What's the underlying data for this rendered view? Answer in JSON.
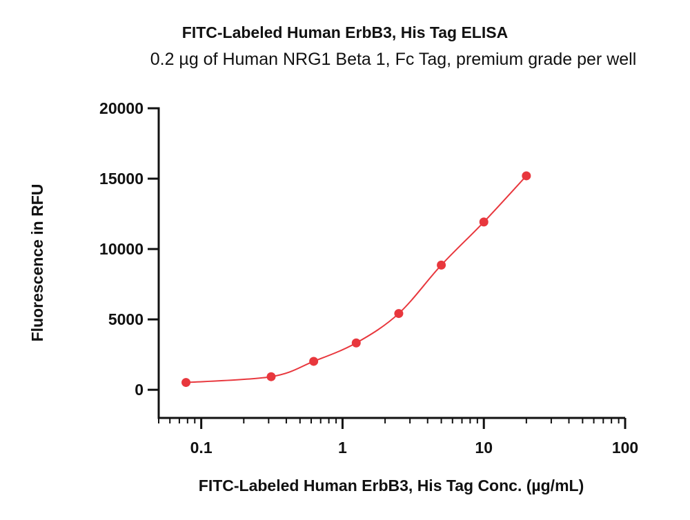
{
  "chart_data": {
    "type": "scatter",
    "title": "FITC-Labeled Human ErbB3, His Tag ELISA",
    "subtitle": "0.2 µg of Human NRG1 Beta 1, Fc Tag, premium grade per well",
    "xlabel": "FITC-Labeled Human ErbB3, His Tag Conc. (µg/mL)",
    "ylabel": "Fluorescence in RFU",
    "x_scale": "log",
    "xlim": [
      0.05,
      100
    ],
    "ylim": [
      -2000,
      20000
    ],
    "x_ticks": [
      0.1,
      1,
      10,
      100
    ],
    "x_tick_labels": [
      "0.1",
      "1",
      "10",
      "100"
    ],
    "y_ticks": [
      0,
      5000,
      10000,
      15000,
      20000
    ],
    "y_tick_labels": [
      "0",
      "5000",
      "10000",
      "15000",
      "20000"
    ],
    "grid": false,
    "color": "#e8373d",
    "series": [
      {
        "x": [
          0.078,
          0.3125,
          0.625,
          1.25,
          2.5,
          5,
          10,
          20
        ],
        "y": [
          520,
          930,
          2020,
          3330,
          5420,
          8860,
          11920,
          15200
        ]
      }
    ]
  }
}
